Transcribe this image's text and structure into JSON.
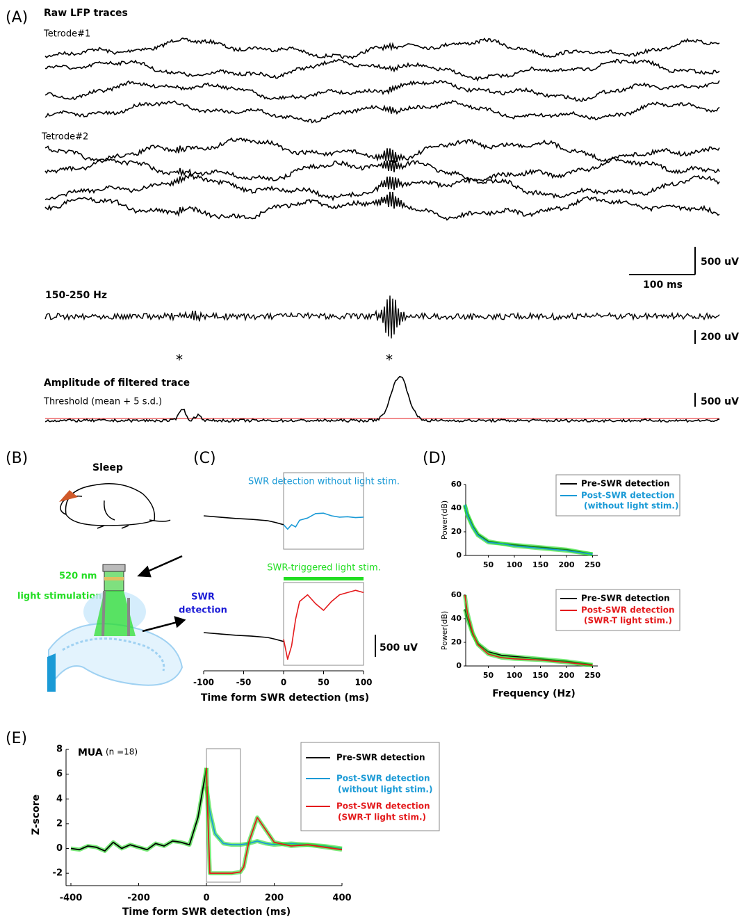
{
  "panel_a": {
    "label": "(A)",
    "title": "Raw LFP traces",
    "tetrode1": "Tetrode#1",
    "tetrode2": "Tetrode#2",
    "scale_v": {
      "value": 500,
      "label": "500 uV"
    },
    "scale_t": {
      "value": 100,
      "label": "100 ms"
    },
    "filter_title": "150-250 Hz",
    "filter_scale": {
      "value": 200,
      "label": "200 uV"
    },
    "stars": [
      "*",
      "*"
    ],
    "amp_title": "Amplitude of filtered trace",
    "threshold": "Threshold (mean + 5 s.d.)",
    "amp_scale": {
      "value": 500,
      "label": "500 uV"
    }
  },
  "panel_b": {
    "label": "(B)",
    "sleep": "Sleep",
    "light": [
      "520 nm",
      "light stimulation"
    ],
    "detection": [
      "SWR",
      "detection"
    ]
  },
  "panel_c": {
    "label": "(C)",
    "type": "line",
    "xlabel": "Time form SWR detection (ms)",
    "xlim": [
      -100,
      100
    ],
    "xticks": [
      -100,
      -50,
      0,
      50,
      100
    ],
    "scale": {
      "value": 500,
      "label": "500 uV"
    },
    "charts": [
      {
        "title": "SWR detection without light stim.",
        "title_color": "#1a9ad6",
        "series": [
          {
            "color": "#000000",
            "x": [
              -100,
              -80,
              -60,
              -40,
              -20,
              -10,
              0
            ],
            "values": [
              0,
              -30,
              -60,
              -80,
              -110,
              -150,
              -200
            ]
          },
          {
            "color": "#1a9ad6",
            "x": [
              0,
              5,
              10,
              15,
              20,
              30,
              40,
              50,
              60,
              70,
              80,
              90,
              100
            ],
            "values": [
              -200,
              -300,
              -200,
              -250,
              -100,
              -50,
              50,
              60,
              0,
              -30,
              -20,
              -40,
              -30
            ]
          }
        ]
      },
      {
        "title": "SWR-triggered light stim.",
        "title_color": "#22dd22",
        "series": [
          {
            "color": "#000000",
            "x": [
              -100,
              -80,
              -60,
              -40,
              -20,
              -10,
              0
            ],
            "values": [
              0,
              -30,
              -60,
              -80,
              -110,
              -150,
              -200
            ]
          },
          {
            "color": "#e41a1c",
            "x": [
              0,
              5,
              10,
              15,
              20,
              30,
              40,
              50,
              60,
              70,
              80,
              90,
              100
            ],
            "values": [
              -150,
              -600,
              -300,
              300,
              700,
              850,
              650,
              500,
              700,
              850,
              900,
              950,
              900
            ]
          }
        ]
      }
    ]
  },
  "panel_d": {
    "label": "(D)",
    "type": "line",
    "ylabel": "Power(dB)",
    "xlabel": "Frequency (Hz)",
    "xlim": [
      0,
      260
    ],
    "xticks": [
      50,
      100,
      150,
      200,
      250
    ],
    "ylim": [
      0,
      60
    ],
    "yticks": [
      0,
      20,
      40,
      60
    ],
    "x": [
      5,
      10,
      20,
      30,
      50,
      75,
      100,
      150,
      200,
      250
    ],
    "charts": [
      {
        "series": [
          {
            "name": [
              "Pre-SWR detection"
            ],
            "color": "#000000",
            "values": [
              42,
              35,
              25,
              18,
              12,
              10,
              9,
              7,
              5,
              1
            ]
          },
          {
            "name": [
              "Post-SWR detection",
              "(without light stim.)"
            ],
            "color": "#1a9ad6",
            "values": [
              43,
              34,
              24,
              17,
              11,
              10,
              8,
              6,
              4,
              1
            ]
          }
        ]
      },
      {
        "series": [
          {
            "name": [
              "Pre-SWR detection"
            ],
            "color": "#000000",
            "values": [
              48,
              40,
              27,
              19,
              12,
              9,
              8,
              6,
              4,
              1
            ]
          },
          {
            "name": [
              "Post-SWR detection",
              "(SWR-T light stim.)"
            ],
            "color": "#e41a1c",
            "values": [
              60,
              45,
              28,
              18,
              10,
              7,
              6,
              5,
              3,
              0.5
            ]
          }
        ]
      }
    ]
  },
  "panel_e": {
    "label": "(E)",
    "type": "line",
    "title": "MUA",
    "n_label": "(n =18)",
    "ylabel": "Z-score",
    "xlabel": "Time form SWR detection (ms)",
    "xlim": [
      -400,
      400
    ],
    "xticks": [
      -400,
      -200,
      0,
      200,
      400
    ],
    "ylim": [
      -3,
      8
    ],
    "yticks": [
      -2,
      0,
      2,
      4,
      6,
      8
    ],
    "series": [
      {
        "name": [
          "Pre-SWR detection"
        ],
        "color": "#000000",
        "x": [
          -400,
          -375,
          -350,
          -325,
          -300,
          -275,
          -250,
          -225,
          -200,
          -175,
          -150,
          -125,
          -100,
          -75,
          -50,
          -25,
          0
        ],
        "values": [
          0,
          -0.1,
          0.2,
          0.1,
          -0.2,
          0.5,
          0,
          0.3,
          0.1,
          -0.1,
          0.4,
          0.2,
          0.6,
          0.5,
          0.3,
          2.5,
          6.5
        ]
      },
      {
        "name": [
          "Post-SWR detection",
          "(without light stim.)"
        ],
        "color": "#1a9ad6",
        "x": [
          0,
          10,
          25,
          50,
          75,
          100,
          125,
          150,
          175,
          200,
          250,
          300,
          350,
          400
        ],
        "values": [
          5,
          3,
          1.2,
          0.4,
          0.3,
          0.3,
          0.4,
          0.6,
          0.4,
          0.3,
          0.4,
          0.3,
          0.2,
          0
        ]
      },
      {
        "name": [
          "Post-SWR detection",
          "(SWR-T light stim.)"
        ],
        "color": "#e41a1c",
        "x": [
          0,
          5,
          10,
          25,
          50,
          75,
          100,
          110,
          125,
          150,
          175,
          200,
          250,
          300,
          350,
          400
        ],
        "values": [
          6.5,
          2,
          -2,
          -2,
          -2,
          -2,
          -1.9,
          -1.5,
          0.5,
          2.5,
          1.5,
          0.5,
          0.2,
          0.3,
          0.1,
          -0.1
        ]
      }
    ]
  }
}
